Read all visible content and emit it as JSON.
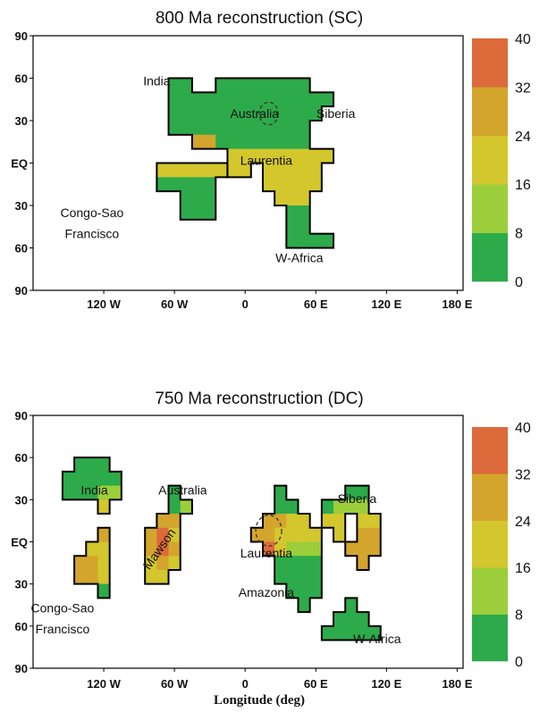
{
  "palette": [
    "#2daa4a",
    "#9cce3b",
    "#d3c72d",
    "#d4a52c",
    "#dd6a3a"
  ],
  "colorbar_ticks": [
    "40",
    "32",
    "24",
    "16",
    "8",
    "0"
  ],
  "x_ticks": [
    "120 W",
    "60 W",
    "0",
    "60 E",
    "120 E",
    "180 E"
  ],
  "y_ticks": [
    "90",
    "60",
    "30",
    "EQ",
    "30",
    "60",
    "90"
  ],
  "x_label": "Longitude (deg)",
  "panels": [
    {
      "title": "800 Ma reconstruction (SC)",
      "labels": [
        {
          "text": "India",
          "lon": -75,
          "lat": 58
        },
        {
          "text": "Australia",
          "lon": 8,
          "lat": 35
        },
        {
          "text": "Siberia",
          "lon": 77,
          "lat": 35
        },
        {
          "text": "Laurentia",
          "lon": 18,
          "lat": 2
        },
        {
          "text": "Congo-Sao",
          "lon": -130,
          "lat": -35
        },
        {
          "text": "Francisco",
          "lon": -130,
          "lat": -50
        },
        {
          "text": "W-Africa",
          "lon": 46,
          "lat": -67
        }
      ],
      "continents": [
        {
          "name": "India-Australia-Siberia-Laurentia",
          "cells": [
            [
              -60,
              55,
              0
            ],
            [
              -50,
              55,
              0
            ],
            [
              -20,
              55,
              0
            ],
            [
              -10,
              55,
              0
            ],
            [
              0,
              55,
              0
            ],
            [
              10,
              55,
              0
            ],
            [
              20,
              55,
              0
            ],
            [
              30,
              55,
              0
            ],
            [
              40,
              55,
              0
            ],
            [
              50,
              55,
              0
            ],
            [
              -60,
              45,
              0
            ],
            [
              -50,
              45,
              0
            ],
            [
              -40,
              45,
              0
            ],
            [
              -30,
              45,
              0
            ],
            [
              -20,
              45,
              0
            ],
            [
              -10,
              45,
              0
            ],
            [
              0,
              45,
              0
            ],
            [
              10,
              45,
              0
            ],
            [
              20,
              45,
              0
            ],
            [
              30,
              45,
              0
            ],
            [
              40,
              45,
              0
            ],
            [
              50,
              45,
              0
            ],
            [
              60,
              45,
              0
            ],
            [
              70,
              45,
              0
            ],
            [
              -60,
              35,
              0
            ],
            [
              -50,
              35,
              0
            ],
            [
              -40,
              35,
              0
            ],
            [
              -30,
              35,
              0
            ],
            [
              -20,
              35,
              0
            ],
            [
              -10,
              35,
              0
            ],
            [
              0,
              35,
              0
            ],
            [
              10,
              35,
              0
            ],
            [
              20,
              35,
              0
            ],
            [
              30,
              35,
              0
            ],
            [
              40,
              35,
              0
            ],
            [
              50,
              35,
              0
            ],
            [
              60,
              35,
              0
            ],
            [
              -60,
              25,
              0
            ],
            [
              -50,
              25,
              0
            ],
            [
              -40,
              25,
              0
            ],
            [
              -30,
              25,
              0
            ],
            [
              -20,
              25,
              0
            ],
            [
              -10,
              25,
              0
            ],
            [
              0,
              25,
              0
            ],
            [
              10,
              25,
              0
            ],
            [
              20,
              25,
              0
            ],
            [
              30,
              25,
              0
            ],
            [
              40,
              25,
              0
            ],
            [
              50,
              25,
              0
            ],
            [
              -40,
              15,
              3
            ],
            [
              -30,
              15,
              3
            ],
            [
              -20,
              15,
              0
            ],
            [
              -10,
              15,
              0
            ],
            [
              0,
              15,
              0
            ],
            [
              10,
              15,
              0
            ],
            [
              20,
              15,
              0
            ],
            [
              30,
              15,
              0
            ],
            [
              40,
              15,
              0
            ],
            [
              50,
              15,
              0
            ],
            [
              -10,
              5,
              2
            ],
            [
              0,
              5,
              2
            ],
            [
              10,
              5,
              2
            ],
            [
              20,
              5,
              2
            ],
            [
              30,
              5,
              2
            ],
            [
              40,
              5,
              2
            ],
            [
              50,
              5,
              2
            ],
            [
              60,
              5,
              2
            ],
            [
              70,
              5,
              2
            ],
            [
              -10,
              -5,
              2
            ],
            [
              0,
              -5,
              2
            ],
            [
              20,
              -5,
              2
            ],
            [
              30,
              -5,
              2
            ],
            [
              40,
              -5,
              2
            ],
            [
              50,
              -5,
              2
            ],
            [
              60,
              -5,
              2
            ],
            [
              20,
              -15,
              2
            ],
            [
              30,
              -15,
              2
            ],
            [
              40,
              -15,
              2
            ],
            [
              50,
              -15,
              2
            ],
            [
              60,
              -15,
              2
            ],
            [
              30,
              -25,
              2
            ],
            [
              40,
              -25,
              2
            ],
            [
              50,
              -25,
              2
            ],
            [
              40,
              -35,
              0
            ],
            [
              50,
              -35,
              0
            ],
            [
              40,
              -45,
              0
            ],
            [
              50,
              -45,
              0
            ],
            [
              40,
              -55,
              0
            ],
            [
              50,
              -55,
              0
            ],
            [
              60,
              -55,
              0
            ],
            [
              70,
              -55,
              0
            ]
          ]
        },
        {
          "name": "Congo-Sao Francisco",
          "cells": [
            [
              -70,
              -5,
              2
            ],
            [
              -60,
              -5,
              2
            ],
            [
              -50,
              -5,
              2
            ],
            [
              -40,
              -5,
              2
            ],
            [
              -30,
              -5,
              2
            ],
            [
              -20,
              -5,
              2
            ],
            [
              -70,
              -15,
              0
            ],
            [
              -60,
              -15,
              0
            ],
            [
              -50,
              -15,
              0
            ],
            [
              -40,
              -15,
              0
            ],
            [
              -30,
              -15,
              0
            ],
            [
              -50,
              -25,
              0
            ],
            [
              -40,
              -25,
              0
            ],
            [
              -30,
              -25,
              0
            ],
            [
              -50,
              -35,
              0
            ],
            [
              -40,
              -35,
              0
            ],
            [
              -30,
              -35,
              0
            ]
          ]
        }
      ],
      "dashed_ring": {
        "lon": 20,
        "lat": 35,
        "r": 8
      }
    },
    {
      "title": "750 Ma reconstruction (DC)",
      "labels": [
        {
          "text": "India",
          "lon": -128,
          "lat": 37
        },
        {
          "text": "Australia",
          "lon": -53,
          "lat": 37
        },
        {
          "text": "Siberia",
          "lon": 95,
          "lat": 31
        },
        {
          "text": "Laurentia",
          "lon": 18,
          "lat": -8
        },
        {
          "text": "Amazonia",
          "lon": 18,
          "lat": -36
        },
        {
          "text": "Congo-Sao",
          "lon": -155,
          "lat": -47
        },
        {
          "text": "Francisco",
          "lon": -155,
          "lat": -62
        },
        {
          "text": "W-Africa",
          "lon": 112,
          "lat": -69
        }
      ],
      "continents": [
        {
          "name": "India",
          "cells": [
            [
              -140,
              55,
              0
            ],
            [
              -130,
              55,
              0
            ],
            [
              -120,
              55,
              0
            ],
            [
              -150,
              45,
              0
            ],
            [
              -140,
              45,
              0
            ],
            [
              -130,
              45,
              0
            ],
            [
              -120,
              45,
              0
            ],
            [
              -110,
              45,
              0
            ],
            [
              -150,
              35,
              0
            ],
            [
              -140,
              35,
              0
            ],
            [
              -130,
              35,
              0
            ],
            [
              -120,
              35,
              1
            ],
            [
              -110,
              35,
              1
            ],
            [
              -120,
              25,
              2
            ]
          ]
        },
        {
          "name": "Congo-Sao Francisco",
          "cells": [
            [
              -120,
              5,
              3
            ],
            [
              -130,
              -5,
              2
            ],
            [
              -120,
              -5,
              2
            ],
            [
              -140,
              -15,
              3
            ],
            [
              -130,
              -15,
              3
            ],
            [
              -120,
              -15,
              2
            ],
            [
              -140,
              -25,
              3
            ],
            [
              -130,
              -25,
              3
            ],
            [
              -120,
              -25,
              2
            ],
            [
              -120,
              -35,
              0
            ]
          ]
        },
        {
          "name": "Australia",
          "cells": [
            [
              -60,
              35,
              0
            ],
            [
              -60,
              25,
              0
            ],
            [
              -50,
              25,
              1
            ],
            [
              -70,
              15,
              3
            ],
            [
              -60,
              15,
              3
            ],
            [
              -80,
              5,
              3
            ],
            [
              -70,
              5,
              4
            ],
            [
              -60,
              5,
              2
            ],
            [
              -80,
              -5,
              3
            ],
            [
              -70,
              -5,
              4
            ],
            [
              -60,
              -5,
              3
            ],
            [
              -80,
              -15,
              2
            ],
            [
              -70,
              -15,
              3
            ],
            [
              -60,
              -15,
              2
            ],
            [
              -80,
              -25,
              2
            ],
            [
              -70,
              -25,
              2
            ]
          ]
        },
        {
          "name": "Laurentia-Siberia-Amazonia",
          "cells": [
            [
              30,
              35,
              0
            ],
            [
              90,
              35,
              0
            ],
            [
              100,
              35,
              0
            ],
            [
              30,
              25,
              0
            ],
            [
              40,
              25,
              0
            ],
            [
              70,
              25,
              0
            ],
            [
              80,
              25,
              1
            ],
            [
              90,
              25,
              1
            ],
            [
              100,
              25,
              1
            ],
            [
              20,
              15,
              3
            ],
            [
              30,
              15,
              3
            ],
            [
              40,
              15,
              2
            ],
            [
              50,
              15,
              2
            ],
            [
              70,
              15,
              2
            ],
            [
              80,
              15,
              2
            ],
            [
              100,
              15,
              2
            ],
            [
              110,
              15,
              2
            ],
            [
              10,
              5,
              3
            ],
            [
              20,
              5,
              3
            ],
            [
              30,
              5,
              2
            ],
            [
              40,
              5,
              2
            ],
            [
              50,
              5,
              2
            ],
            [
              60,
              5,
              2
            ],
            [
              80,
              5,
              2
            ],
            [
              100,
              5,
              3
            ],
            [
              110,
              5,
              3
            ],
            [
              20,
              -5,
              4
            ],
            [
              30,
              -5,
              2
            ],
            [
              40,
              -5,
              1
            ],
            [
              50,
              -5,
              1
            ],
            [
              60,
              -5,
              1
            ],
            [
              90,
              -5,
              3
            ],
            [
              100,
              -5,
              3
            ],
            [
              110,
              -5,
              3
            ],
            [
              30,
              -15,
              0
            ],
            [
              40,
              -15,
              0
            ],
            [
              50,
              -15,
              0
            ],
            [
              60,
              -15,
              0
            ],
            [
              100,
              -15,
              3
            ],
            [
              30,
              -25,
              0
            ],
            [
              40,
              -25,
              0
            ],
            [
              50,
              -25,
              0
            ],
            [
              60,
              -25,
              0
            ],
            [
              40,
              -35,
              0
            ],
            [
              50,
              -35,
              0
            ],
            [
              60,
              -35,
              0
            ],
            [
              50,
              -45,
              0
            ]
          ]
        },
        {
          "name": "W-Africa",
          "cells": [
            [
              90,
              -45,
              0
            ],
            [
              80,
              -55,
              0
            ],
            [
              90,
              -55,
              0
            ],
            [
              100,
              -55,
              0
            ],
            [
              70,
              -65,
              0
            ],
            [
              80,
              -65,
              0
            ],
            [
              90,
              -65,
              0
            ],
            [
              100,
              -65,
              0
            ],
            [
              110,
              -65,
              0
            ]
          ]
        }
      ],
      "dashed_ring": {
        "lon": 20,
        "lat": 8,
        "r": 11
      },
      "mawson": {
        "text": "Mawson",
        "lon": -73,
        "lat": -5,
        "angle": -55
      }
    }
  ]
}
